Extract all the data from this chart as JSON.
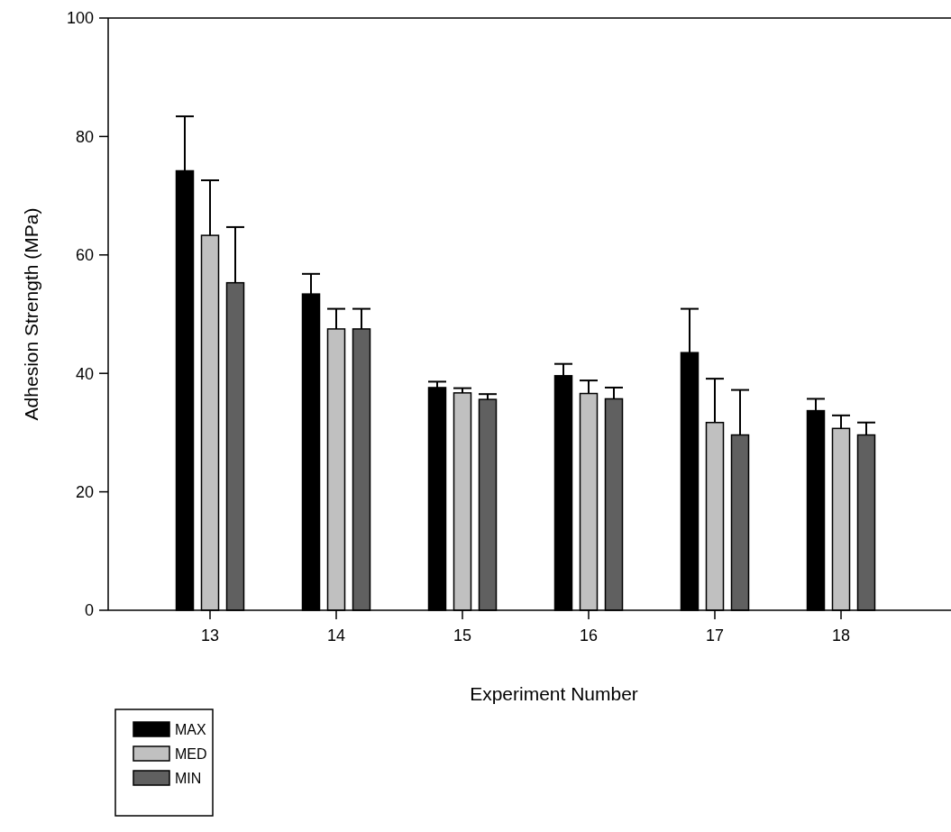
{
  "chart_data": {
    "type": "bar",
    "xlabel": "Experiment Number",
    "ylabel": "Adhesion Strength (MPa)",
    "categories": [
      "13",
      "14",
      "15",
      "16",
      "17",
      "18"
    ],
    "series": [
      {
        "name": "MAX",
        "color": "#000000",
        "values": [
          74.2,
          53.4,
          37.6,
          39.6,
          43.5,
          33.7
        ],
        "errors": [
          [
            74.2,
            83.4
          ],
          [
            53.4,
            56.8
          ],
          [
            37.6,
            38.6
          ],
          [
            39.6,
            41.6
          ],
          [
            43.5,
            50.9
          ],
          [
            33.7,
            35.7
          ]
        ]
      },
      {
        "name": "MED",
        "color": "#c0c0c0",
        "values": [
          63.3,
          47.5,
          36.7,
          36.6,
          31.7,
          30.7
        ],
        "errors": [
          [
            63.3,
            72.6
          ],
          [
            47.5,
            50.9
          ],
          [
            36.7,
            37.5
          ],
          [
            36.6,
            38.8
          ],
          [
            31.7,
            39.1
          ],
          [
            30.7,
            32.9
          ]
        ]
      },
      {
        "name": "MIN",
        "color": "#606060",
        "values": [
          55.3,
          47.5,
          35.6,
          35.7,
          29.6,
          29.6
        ],
        "errors": [
          [
            55.3,
            64.7
          ],
          [
            47.5,
            50.9
          ],
          [
            35.6,
            36.5
          ],
          [
            35.7,
            37.6
          ],
          [
            29.6,
            37.2
          ],
          [
            29.6,
            31.7
          ]
        ]
      }
    ],
    "ylim": [
      0,
      100
    ],
    "yticks": [
      0,
      20,
      40,
      60,
      80,
      100
    ],
    "grid": false,
    "legend": "bottom left"
  }
}
